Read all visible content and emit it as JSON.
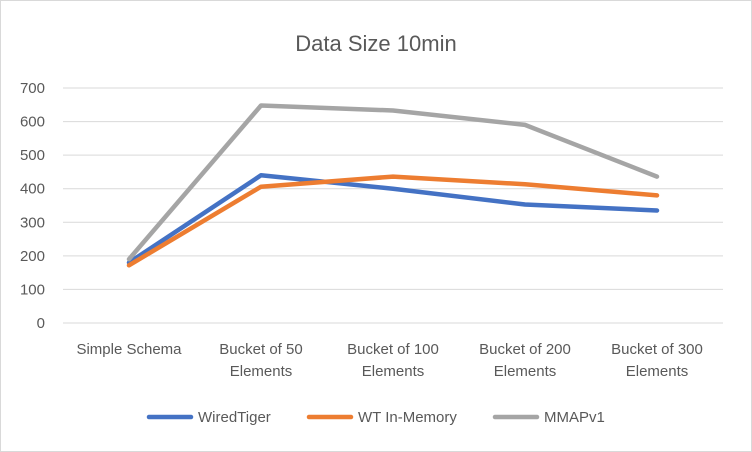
{
  "chart_data": {
    "type": "line",
    "title": "Data Size 10min",
    "categories": [
      [
        "Simple Schema"
      ],
      [
        "Bucket of 50",
        "Elements"
      ],
      [
        "Bucket of 100",
        "Elements"
      ],
      [
        "Bucket of 200",
        "Elements"
      ],
      [
        "Bucket of 300",
        "Elements"
      ]
    ],
    "series": [
      {
        "name": "WiredTiger",
        "color": "#4472c4",
        "values": [
          180,
          440,
          400,
          353,
          335
        ]
      },
      {
        "name": "WT In-Memory",
        "color": "#ed7d31",
        "values": [
          172,
          406,
          436,
          413,
          380
        ]
      },
      {
        "name": "MMAPv1",
        "color": "#a5a5a5",
        "values": [
          190,
          648,
          633,
          590,
          436
        ]
      }
    ],
    "ylim": [
      0,
      700
    ],
    "yticks": [
      0,
      100,
      200,
      300,
      400,
      500,
      600,
      700
    ],
    "grid": true,
    "legend_position": "bottom",
    "xlabel": "",
    "ylabel": ""
  }
}
